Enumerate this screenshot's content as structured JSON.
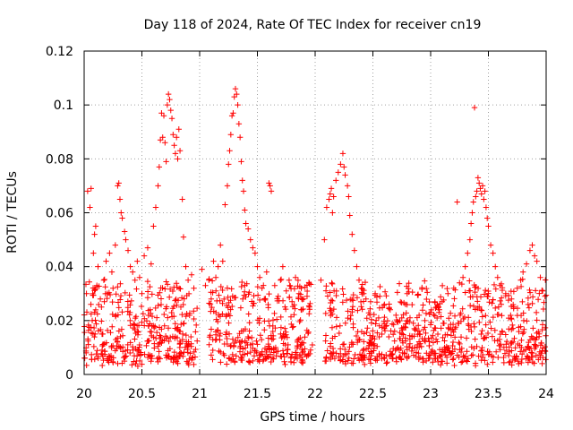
{
  "chart_data": {
    "type": "scatter",
    "title": "Day 118 of 2024, Rate Of TEC Index for receiver cn19",
    "xlabel": "GPS time / hours",
    "ylabel": "ROTI / TECUs",
    "xlim": [
      20,
      24
    ],
    "ylim": [
      0,
      0.12
    ],
    "xticks": [
      20,
      20.5,
      21,
      21.5,
      22,
      22.5,
      23,
      23.5,
      24
    ],
    "xtick_labels": [
      "20",
      "20.5",
      "21",
      "21.5",
      "22",
      "22.5",
      "23",
      "23.5",
      "24"
    ],
    "yticks": [
      0,
      0.02,
      0.04,
      0.06,
      0.08,
      0.1,
      0.12
    ],
    "ytick_labels": [
      "0",
      "0.02",
      "0.04",
      "0.06",
      "0.08",
      "0.1",
      "0.12"
    ],
    "grid": true,
    "marker": "+",
    "series": [
      {
        "name": "ROTI",
        "color": "#ff0000",
        "points": [
          [
            20.02,
            0.03
          ],
          [
            20.03,
            0.068
          ],
          [
            20.05,
            0.062
          ],
          [
            20.06,
            0.069
          ],
          [
            20.07,
            0.02
          ],
          [
            20.08,
            0.045
          ],
          [
            20.09,
            0.052
          ],
          [
            20.1,
            0.055
          ],
          [
            20.11,
            0.033
          ],
          [
            20.12,
            0.04
          ],
          [
            20.14,
            0.028
          ],
          [
            20.15,
            0.025
          ],
          [
            20.17,
            0.035
          ],
          [
            20.19,
            0.042
          ],
          [
            20.2,
            0.03
          ],
          [
            20.22,
            0.045
          ],
          [
            20.24,
            0.038
          ],
          [
            20.25,
            0.032
          ],
          [
            20.27,
            0.048
          ],
          [
            20.29,
            0.07
          ],
          [
            20.3,
            0.071
          ],
          [
            20.31,
            0.065
          ],
          [
            20.32,
            0.06
          ],
          [
            20.33,
            0.058
          ],
          [
            20.35,
            0.053
          ],
          [
            20.36,
            0.05
          ],
          [
            20.38,
            0.046
          ],
          [
            20.4,
            0.04
          ],
          [
            20.42,
            0.038
          ],
          [
            20.44,
            0.035
          ],
          [
            20.46,
            0.042
          ],
          [
            20.48,
            0.036
          ],
          [
            20.5,
            0.03
          ],
          [
            20.52,
            0.044
          ],
          [
            20.55,
            0.047
          ],
          [
            20.58,
            0.041
          ],
          [
            20.6,
            0.055
          ],
          [
            20.62,
            0.062
          ],
          [
            20.64,
            0.07
          ],
          [
            20.65,
            0.077
          ],
          [
            20.66,
            0.087
          ],
          [
            20.67,
            0.097
          ],
          [
            20.68,
            0.088
          ],
          [
            20.69,
            0.096
          ],
          [
            20.7,
            0.086
          ],
          [
            20.71,
            0.079
          ],
          [
            20.72,
            0.1
          ],
          [
            20.73,
            0.104
          ],
          [
            20.74,
            0.102
          ],
          [
            20.75,
            0.098
          ],
          [
            20.76,
            0.095
          ],
          [
            20.77,
            0.089
          ],
          [
            20.78,
            0.085
          ],
          [
            20.79,
            0.082
          ],
          [
            20.8,
            0.088
          ],
          [
            20.81,
            0.08
          ],
          [
            20.82,
            0.091
          ],
          [
            20.83,
            0.083
          ],
          [
            20.85,
            0.065
          ],
          [
            20.86,
            0.051
          ],
          [
            20.88,
            0.04
          ],
          [
            20.9,
            0.035
          ],
          [
            20.93,
            0.037
          ],
          [
            20.95,
            0.032
          ],
          [
            21.02,
            0.039
          ],
          [
            21.05,
            0.033
          ],
          [
            21.08,
            0.035
          ],
          [
            21.1,
            0.028
          ],
          [
            21.12,
            0.042
          ],
          [
            21.14,
            0.036
          ],
          [
            21.16,
            0.04
          ],
          [
            21.18,
            0.048
          ],
          [
            21.2,
            0.042
          ],
          [
            21.22,
            0.063
          ],
          [
            21.24,
            0.07
          ],
          [
            21.25,
            0.078
          ],
          [
            21.26,
            0.083
          ],
          [
            21.27,
            0.089
          ],
          [
            21.28,
            0.096
          ],
          [
            21.29,
            0.097
          ],
          [
            21.3,
            0.103
          ],
          [
            21.31,
            0.106
          ],
          [
            21.32,
            0.104
          ],
          [
            21.33,
            0.1
          ],
          [
            21.34,
            0.093
          ],
          [
            21.35,
            0.088
          ],
          [
            21.36,
            0.079
          ],
          [
            21.37,
            0.072
          ],
          [
            21.38,
            0.068
          ],
          [
            21.39,
            0.061
          ],
          [
            21.4,
            0.056
          ],
          [
            21.42,
            0.054
          ],
          [
            21.44,
            0.05
          ],
          [
            21.46,
            0.047
          ],
          [
            21.48,
            0.045
          ],
          [
            21.5,
            0.04
          ],
          [
            21.52,
            0.036
          ],
          [
            21.54,
            0.032
          ],
          [
            21.56,
            0.028
          ],
          [
            21.58,
            0.038
          ],
          [
            21.6,
            0.071
          ],
          [
            21.61,
            0.07
          ],
          [
            21.62,
            0.068
          ],
          [
            21.65,
            0.033
          ],
          [
            21.68,
            0.029
          ],
          [
            21.7,
            0.035
          ],
          [
            21.72,
            0.04
          ],
          [
            21.75,
            0.031
          ],
          [
            21.78,
            0.033
          ],
          [
            21.8,
            0.027
          ],
          [
            21.83,
            0.036
          ],
          [
            21.86,
            0.03
          ],
          [
            21.88,
            0.032
          ],
          [
            21.9,
            0.028
          ],
          [
            21.93,
            0.029
          ],
          [
            21.95,
            0.025
          ],
          [
            22.05,
            0.035
          ],
          [
            22.08,
            0.05
          ],
          [
            22.1,
            0.062
          ],
          [
            22.12,
            0.065
          ],
          [
            22.13,
            0.067
          ],
          [
            22.14,
            0.069
          ],
          [
            22.15,
            0.06
          ],
          [
            22.16,
            0.066
          ],
          [
            22.18,
            0.072
          ],
          [
            22.2,
            0.075
          ],
          [
            22.22,
            0.078
          ],
          [
            22.24,
            0.082
          ],
          [
            22.25,
            0.077
          ],
          [
            22.26,
            0.074
          ],
          [
            22.28,
            0.07
          ],
          [
            22.29,
            0.066
          ],
          [
            22.3,
            0.059
          ],
          [
            22.32,
            0.052
          ],
          [
            22.34,
            0.046
          ],
          [
            22.36,
            0.04
          ],
          [
            22.38,
            0.035
          ],
          [
            22.4,
            0.032
          ],
          [
            22.42,
            0.03
          ],
          [
            22.44,
            0.028
          ],
          [
            22.48,
            0.027
          ],
          [
            22.52,
            0.03
          ],
          [
            22.56,
            0.029
          ],
          [
            22.6,
            0.026
          ],
          [
            22.65,
            0.024
          ],
          [
            22.7,
            0.022
          ],
          [
            22.75,
            0.021
          ],
          [
            22.8,
            0.02
          ],
          [
            22.85,
            0.019
          ],
          [
            22.9,
            0.022
          ],
          [
            22.95,
            0.02
          ],
          [
            23.0,
            0.023
          ],
          [
            23.05,
            0.025
          ],
          [
            23.1,
            0.027
          ],
          [
            23.15,
            0.03
          ],
          [
            23.2,
            0.032
          ],
          [
            23.23,
            0.064
          ],
          [
            23.25,
            0.034
          ],
          [
            23.28,
            0.036
          ],
          [
            23.3,
            0.04
          ],
          [
            23.32,
            0.045
          ],
          [
            23.34,
            0.05
          ],
          [
            23.35,
            0.056
          ],
          [
            23.36,
            0.06
          ],
          [
            23.37,
            0.064
          ],
          [
            23.38,
            0.099
          ],
          [
            23.39,
            0.066
          ],
          [
            23.4,
            0.068
          ],
          [
            23.41,
            0.073
          ],
          [
            23.42,
            0.071
          ],
          [
            23.43,
            0.069
          ],
          [
            23.44,
            0.067
          ],
          [
            23.45,
            0.07
          ],
          [
            23.46,
            0.065
          ],
          [
            23.47,
            0.068
          ],
          [
            23.48,
            0.062
          ],
          [
            23.49,
            0.058
          ],
          [
            23.5,
            0.055
          ],
          [
            23.52,
            0.048
          ],
          [
            23.54,
            0.045
          ],
          [
            23.56,
            0.04
          ],
          [
            23.58,
            0.036
          ],
          [
            23.6,
            0.033
          ],
          [
            23.65,
            0.03
          ],
          [
            23.7,
            0.028
          ],
          [
            23.75,
            0.032
          ],
          [
            23.78,
            0.035
          ],
          [
            23.8,
            0.038
          ],
          [
            23.83,
            0.041
          ],
          [
            23.86,
            0.046
          ],
          [
            23.88,
            0.048
          ],
          [
            23.9,
            0.044
          ],
          [
            23.92,
            0.042
          ],
          [
            23.95,
            0.036
          ],
          [
            23.97,
            0.031
          ],
          [
            23.99,
            0.029
          ]
        ],
        "dense_band": {
          "note": "dense low-level scatter filling most of the observed time ranges",
          "segments": [
            [
              20.0,
              20.98
            ],
            [
              21.08,
              21.98
            ],
            [
              22.08,
              24.0
            ]
          ],
          "count": 1400,
          "y_min": 0.003,
          "y_max": 0.032
        }
      }
    ]
  }
}
